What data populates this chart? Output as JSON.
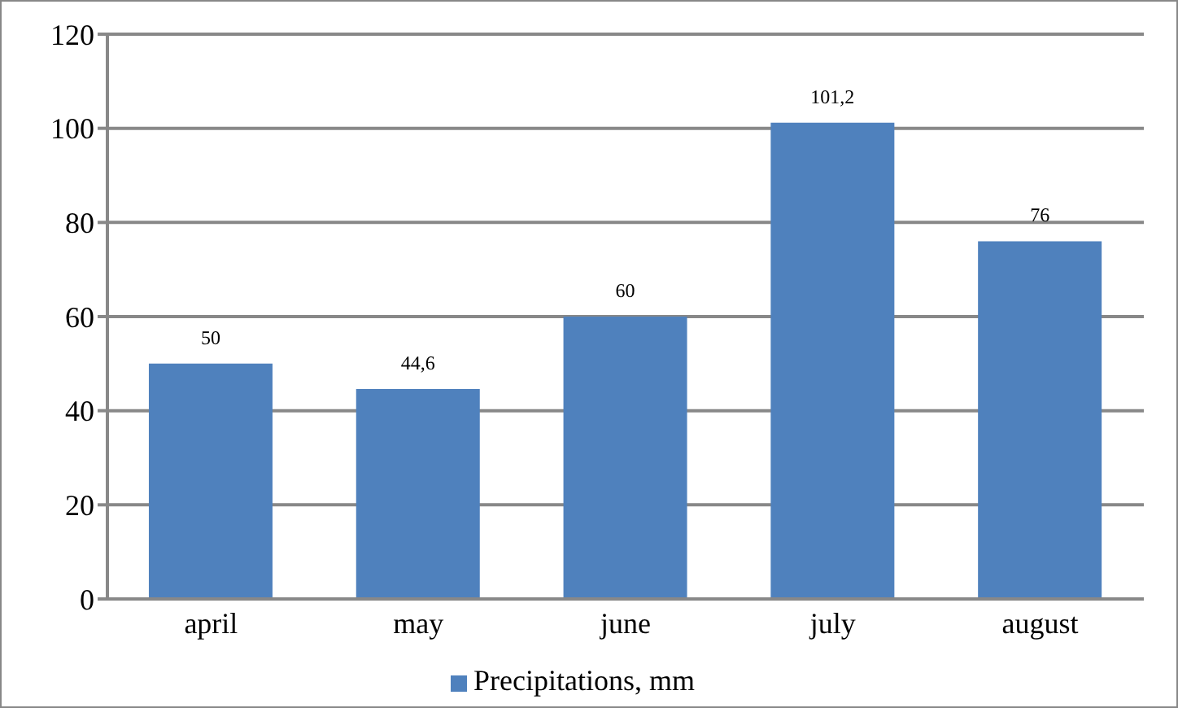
{
  "chart_data": {
    "type": "bar",
    "categories": [
      "april",
      "may",
      "june",
      "july",
      "august"
    ],
    "series": [
      {
        "name": "Precipitations, mm",
        "color": "#4f81bd",
        "values": [
          50,
          44.6,
          60,
          101.2,
          76
        ],
        "value_labels": [
          "50",
          "44,6",
          "60",
          "101,2",
          "76"
        ]
      }
    ],
    "ylim": [
      0,
      120
    ],
    "yticks": [
      0,
      20,
      40,
      60,
      80,
      100,
      120
    ],
    "grid": "y",
    "legend": "bottom"
  }
}
